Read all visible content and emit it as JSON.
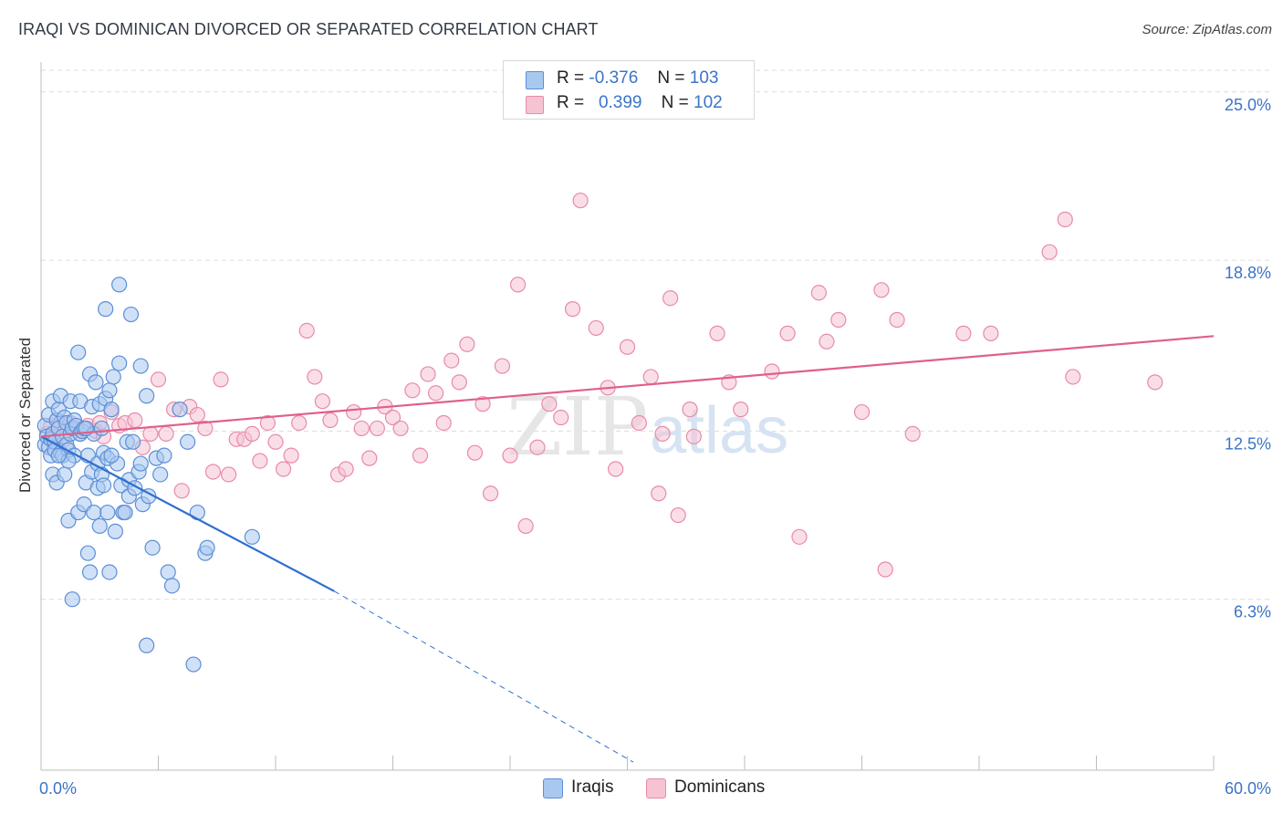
{
  "header": {
    "title": "IRAQI VS DOMINICAN DIVORCED OR SEPARATED CORRELATION CHART",
    "source": "Source: ZipAtlas.com"
  },
  "legend": {
    "iraqis": {
      "r_label": "R =",
      "r_value": "-0.376",
      "n_label": "N =",
      "n_value": "103"
    },
    "dominicans": {
      "r_label": "R =",
      "r_value": "0.399",
      "n_label": "N =",
      "n_value": "102"
    }
  },
  "colors": {
    "iraqi_fill": "#a9c8f0",
    "iraqi_stroke": "#5b8fd6",
    "iraqi_line": "#2f6fd0",
    "dominican_fill": "#f6c3d3",
    "dominican_stroke": "#e88aa8",
    "dominican_line": "#e0608a",
    "tick_label": "#3a74c8",
    "grid": "#dcdcdc",
    "watermark": "#e8e8e8"
  },
  "watermark": {
    "zip": "ZIP",
    "atlas": "atlas"
  },
  "chart_data": {
    "type": "scatter",
    "title": "IRAQI VS DOMINICAN DIVORCED OR SEPARATED CORRELATION CHART",
    "xlabel": "",
    "ylabel": "Divorced or Separated",
    "xlim": [
      0,
      60
    ],
    "ylim": [
      0,
      25.8
    ],
    "x_tick_labels": [
      "0.0%",
      "60.0%"
    ],
    "y_ticks": [
      6.3,
      12.5,
      18.8,
      25.0
    ],
    "y_tick_labels": [
      "6.3%",
      "12.5%",
      "18.8%",
      "25.0%"
    ],
    "grid": true,
    "legend_position": "top-center",
    "series": [
      {
        "name": "Iraqis",
        "points": [
          [
            0.2,
            12.0
          ],
          [
            0.2,
            12.7
          ],
          [
            0.3,
            12.3
          ],
          [
            0.4,
            11.9
          ],
          [
            0.4,
            13.1
          ],
          [
            0.5,
            12.2
          ],
          [
            0.5,
            11.6
          ],
          [
            0.6,
            12.4
          ],
          [
            0.6,
            10.9
          ],
          [
            0.6,
            13.6
          ],
          [
            0.7,
            12.1
          ],
          [
            0.7,
            11.8
          ],
          [
            0.8,
            12.9
          ],
          [
            0.8,
            10.6
          ],
          [
            0.9,
            13.3
          ],
          [
            0.9,
            12.6
          ],
          [
            1.0,
            13.8
          ],
          [
            1.0,
            11.7
          ],
          [
            1.1,
            12.3
          ],
          [
            1.1,
            11.6
          ],
          [
            1.2,
            10.9
          ],
          [
            1.2,
            13.0
          ],
          [
            1.3,
            12.8
          ],
          [
            1.3,
            12.0
          ],
          [
            1.4,
            11.8
          ],
          [
            1.4,
            9.2
          ],
          [
            1.5,
            13.6
          ],
          [
            1.5,
            12.4
          ],
          [
            1.6,
            12.6
          ],
          [
            1.6,
            6.3
          ],
          [
            1.7,
            11.6
          ],
          [
            1.7,
            12.9
          ],
          [
            1.8,
            12.7
          ],
          [
            1.9,
            15.4
          ],
          [
            1.9,
            9.5
          ],
          [
            2.0,
            12.4
          ],
          [
            2.0,
            13.6
          ],
          [
            2.1,
            12.5
          ],
          [
            2.2,
            12.6
          ],
          [
            2.2,
            9.8
          ],
          [
            2.3,
            10.6
          ],
          [
            2.4,
            8.0
          ],
          [
            2.4,
            11.6
          ],
          [
            2.5,
            14.6
          ],
          [
            2.5,
            7.3
          ],
          [
            2.6,
            13.4
          ],
          [
            2.6,
            11.0
          ],
          [
            2.7,
            9.5
          ],
          [
            2.7,
            12.4
          ],
          [
            2.8,
            14.3
          ],
          [
            2.9,
            10.4
          ],
          [
            2.9,
            11.3
          ],
          [
            3.0,
            13.5
          ],
          [
            3.0,
            9.0
          ],
          [
            3.1,
            12.6
          ],
          [
            3.1,
            10.9
          ],
          [
            3.2,
            11.7
          ],
          [
            3.2,
            10.5
          ],
          [
            3.3,
            17.0
          ],
          [
            3.3,
            13.7
          ],
          [
            3.4,
            9.5
          ],
          [
            3.4,
            11.5
          ],
          [
            3.5,
            14.0
          ],
          [
            3.5,
            7.3
          ],
          [
            3.6,
            13.3
          ],
          [
            3.7,
            14.5
          ],
          [
            3.8,
            8.8
          ],
          [
            3.9,
            11.3
          ],
          [
            4.0,
            15.0
          ],
          [
            4.0,
            17.9
          ],
          [
            4.1,
            10.5
          ],
          [
            4.2,
            9.5
          ],
          [
            4.3,
            9.5
          ],
          [
            4.4,
            12.1
          ],
          [
            4.5,
            10.7
          ],
          [
            4.5,
            10.1
          ],
          [
            4.6,
            16.8
          ],
          [
            4.7,
            12.1
          ],
          [
            4.8,
            10.4
          ],
          [
            5.0,
            11.0
          ],
          [
            5.1,
            11.3
          ],
          [
            5.1,
            14.9
          ],
          [
            5.2,
            9.8
          ],
          [
            5.4,
            4.6
          ],
          [
            5.4,
            13.8
          ],
          [
            5.5,
            10.1
          ],
          [
            5.7,
            8.2
          ],
          [
            5.9,
            11.5
          ],
          [
            6.1,
            10.9
          ],
          [
            6.3,
            11.6
          ],
          [
            6.5,
            7.3
          ],
          [
            6.7,
            6.8
          ],
          [
            7.1,
            13.3
          ],
          [
            7.5,
            12.1
          ],
          [
            7.8,
            3.9
          ],
          [
            8.0,
            9.5
          ],
          [
            8.4,
            8.0
          ],
          [
            8.5,
            8.2
          ],
          [
            10.8,
            8.6
          ],
          [
            1.4,
            11.4
          ],
          [
            2.3,
            12.6
          ],
          [
            0.9,
            11.6
          ],
          [
            3.6,
            11.6
          ]
        ]
      },
      {
        "name": "Dominicans",
        "points": [
          [
            0.3,
            12.4
          ],
          [
            0.5,
            12.7
          ],
          [
            0.8,
            12.3
          ],
          [
            1.0,
            12.8
          ],
          [
            1.2,
            12.2
          ],
          [
            1.5,
            12.8
          ],
          [
            1.8,
            12.6
          ],
          [
            2.0,
            12.4
          ],
          [
            2.4,
            12.7
          ],
          [
            2.8,
            12.5
          ],
          [
            3.2,
            12.3
          ],
          [
            3.6,
            13.2
          ],
          [
            4.0,
            12.7
          ],
          [
            4.3,
            12.8
          ],
          [
            4.8,
            12.9
          ],
          [
            5.2,
            11.9
          ],
          [
            5.6,
            12.4
          ],
          [
            6.0,
            14.4
          ],
          [
            6.4,
            12.4
          ],
          [
            6.8,
            13.3
          ],
          [
            7.2,
            10.3
          ],
          [
            7.6,
            13.4
          ],
          [
            8.0,
            13.1
          ],
          [
            8.4,
            12.6
          ],
          [
            8.8,
            11.0
          ],
          [
            9.2,
            14.4
          ],
          [
            9.6,
            10.9
          ],
          [
            10.0,
            12.2
          ],
          [
            10.4,
            12.2
          ],
          [
            10.8,
            12.4
          ],
          [
            11.2,
            11.4
          ],
          [
            11.6,
            12.8
          ],
          [
            12.0,
            12.1
          ],
          [
            12.4,
            11.1
          ],
          [
            12.8,
            11.6
          ],
          [
            13.2,
            12.8
          ],
          [
            13.6,
            16.2
          ],
          [
            14.0,
            14.5
          ],
          [
            14.4,
            13.6
          ],
          [
            14.8,
            12.9
          ],
          [
            15.2,
            10.9
          ],
          [
            15.6,
            11.1
          ],
          [
            16.0,
            13.2
          ],
          [
            16.4,
            12.6
          ],
          [
            16.8,
            11.5
          ],
          [
            17.2,
            12.6
          ],
          [
            17.6,
            13.4
          ],
          [
            18.0,
            13.0
          ],
          [
            18.4,
            12.6
          ],
          [
            19.0,
            14.0
          ],
          [
            19.4,
            11.6
          ],
          [
            19.8,
            14.6
          ],
          [
            20.2,
            13.9
          ],
          [
            20.6,
            12.8
          ],
          [
            21.0,
            15.1
          ],
          [
            21.4,
            14.3
          ],
          [
            21.8,
            15.7
          ],
          [
            22.2,
            11.7
          ],
          [
            22.6,
            13.5
          ],
          [
            23.0,
            10.2
          ],
          [
            23.6,
            14.9
          ],
          [
            24.0,
            11.6
          ],
          [
            24.4,
            17.9
          ],
          [
            24.8,
            9.0
          ],
          [
            25.4,
            11.9
          ],
          [
            26.0,
            13.5
          ],
          [
            26.6,
            13.0
          ],
          [
            27.2,
            17.0
          ],
          [
            27.6,
            21.0
          ],
          [
            28.4,
            16.3
          ],
          [
            29.0,
            14.1
          ],
          [
            29.4,
            11.1
          ],
          [
            30.0,
            15.6
          ],
          [
            30.6,
            12.8
          ],
          [
            31.2,
            14.5
          ],
          [
            31.6,
            10.2
          ],
          [
            31.8,
            12.4
          ],
          [
            32.2,
            17.4
          ],
          [
            32.6,
            9.4
          ],
          [
            33.2,
            13.3
          ],
          [
            33.4,
            12.3
          ],
          [
            34.6,
            16.1
          ],
          [
            35.2,
            14.3
          ],
          [
            35.8,
            13.3
          ],
          [
            37.4,
            14.7
          ],
          [
            38.2,
            16.1
          ],
          [
            38.8,
            8.6
          ],
          [
            39.8,
            17.6
          ],
          [
            40.2,
            15.8
          ],
          [
            40.8,
            16.6
          ],
          [
            42.0,
            13.2
          ],
          [
            43.0,
            17.7
          ],
          [
            43.2,
            7.4
          ],
          [
            43.8,
            16.6
          ],
          [
            44.6,
            12.4
          ],
          [
            47.2,
            16.1
          ],
          [
            48.6,
            16.1
          ],
          [
            51.6,
            19.1
          ],
          [
            52.4,
            20.3
          ],
          [
            52.8,
            14.5
          ],
          [
            57.0,
            14.3
          ],
          [
            3.0,
            12.8
          ]
        ]
      }
    ],
    "trend_lines": [
      {
        "name": "Iraqis",
        "solid": [
          [
            0,
            12.3
          ],
          [
            15,
            6.6
          ]
        ],
        "dashed": [
          [
            15,
            6.6
          ],
          [
            30.3,
            0.3
          ]
        ]
      },
      {
        "name": "Dominicans",
        "solid": [
          [
            0,
            12.3
          ],
          [
            60,
            16.0
          ]
        ]
      }
    ],
    "bottom_legend": [
      "Iraqis",
      "Dominicans"
    ]
  }
}
